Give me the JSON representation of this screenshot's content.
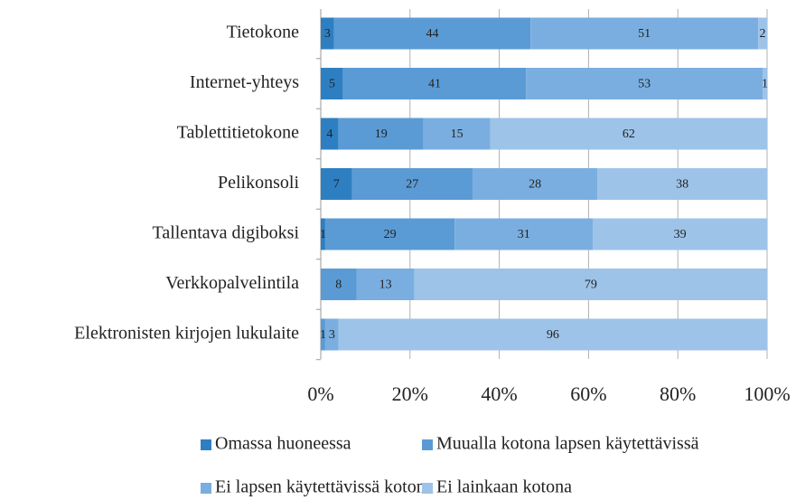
{
  "chart_data": {
    "type": "stacked-barh",
    "categories": [
      "Tietokone",
      "Internet-yhteys",
      "Tablettitietokone",
      "Pelikonsoli",
      "Tallentava digiboksi",
      "Verkkopalvelintila",
      "Elektronisten kirjojen lukulaite"
    ],
    "series": [
      {
        "name": "Omassa huoneessa",
        "color": "#2e7fc2",
        "values": [
          3,
          5,
          4,
          7,
          1,
          null,
          null
        ]
      },
      {
        "name": "Muualla kotona lapsen käytettävissä",
        "color": "#5b9bd5",
        "values": [
          44,
          41,
          19,
          27,
          29,
          8,
          1
        ]
      },
      {
        "name": "Ei lapsen käytettävissä kotona",
        "color": "#7aaee0",
        "values": [
          51,
          53,
          15,
          28,
          31,
          13,
          3
        ]
      },
      {
        "name": "Ei lainkaan kotona",
        "color": "#9dc3e8",
        "values": [
          2,
          1,
          62,
          38,
          39,
          79,
          96
        ]
      }
    ],
    "xlim": [
      0,
      100
    ],
    "xticks": [
      {
        "value": 0,
        "label": "0%"
      },
      {
        "value": 20,
        "label": "20%"
      },
      {
        "value": 40,
        "label": "40%"
      },
      {
        "value": 60,
        "label": "60%"
      },
      {
        "value": 80,
        "label": "80%"
      },
      {
        "value": 100,
        "label": "100%"
      }
    ],
    "grid": true
  }
}
